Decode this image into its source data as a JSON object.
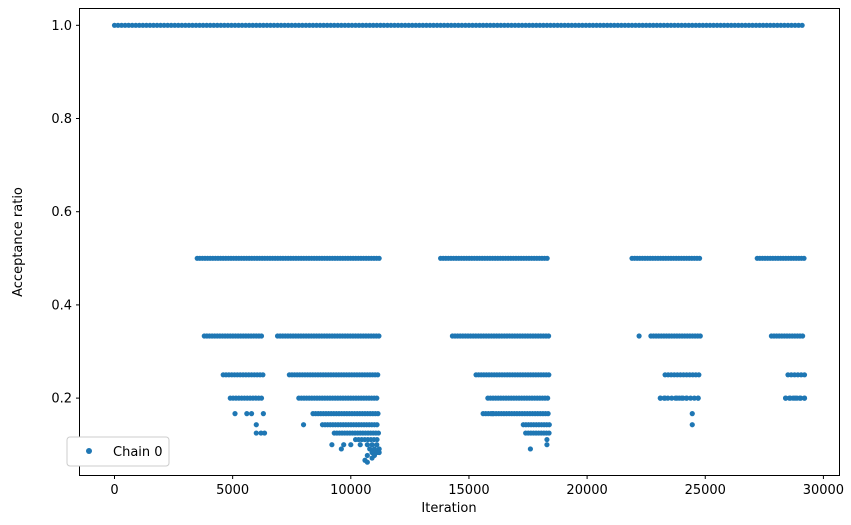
{
  "chart_data": {
    "type": "scatter",
    "title": "",
    "xlabel": "Iteration",
    "ylabel": "Acceptance ratio",
    "xlim": [
      -1460,
      30660
    ],
    "ylim": [
      0.035,
      1.035
    ],
    "xticks": [
      0,
      5000,
      10000,
      15000,
      20000,
      25000,
      30000
    ],
    "yticks": [
      0.2,
      0.4,
      0.6,
      0.8,
      1.0
    ],
    "xtick_labels": [
      "0",
      "5000",
      "10000",
      "15000",
      "20000",
      "25000",
      "30000"
    ],
    "ytick_labels": [
      "0.2",
      "0.4",
      "0.6",
      "0.8",
      "1.0"
    ],
    "grid": false,
    "legend_position": "lower-left",
    "series": [
      {
        "name": "Chain 0",
        "color": "#1f77b4",
        "marker": "dot",
        "segments": [
          {
            "y": 1.0,
            "x_start": 0,
            "x_end": 29200,
            "step": 150
          },
          {
            "y": 0.5,
            "x_start": 3500,
            "x_end": 11200,
            "step": 110
          },
          {
            "y": 0.5,
            "x_start": 13800,
            "x_end": 18400,
            "step": 110
          },
          {
            "y": 0.5,
            "x_start": 21900,
            "x_end": 24800,
            "step": 110
          },
          {
            "y": 0.5,
            "x_start": 27200,
            "x_end": 29200,
            "step": 110
          },
          {
            "y": 0.3333,
            "x_start": 3800,
            "x_end": 6300,
            "step": 110
          },
          {
            "y": 0.3333,
            "x_start": 6900,
            "x_end": 11200,
            "step": 110
          },
          {
            "y": 0.3333,
            "x_start": 14300,
            "x_end": 18400,
            "step": 110
          },
          {
            "y": 0.3333,
            "x_start": 22700,
            "x_end": 24800,
            "step": 110
          },
          {
            "y": 0.3333,
            "x_start": 27800,
            "x_end": 29200,
            "step": 110
          },
          {
            "y": 0.25,
            "x_start": 4600,
            "x_end": 6300,
            "step": 120
          },
          {
            "y": 0.25,
            "x_start": 7400,
            "x_end": 11200,
            "step": 110
          },
          {
            "y": 0.25,
            "x_start": 15300,
            "x_end": 18400,
            "step": 110
          },
          {
            "y": 0.25,
            "x_start": 23300,
            "x_end": 24800,
            "step": 130
          },
          {
            "y": 0.25,
            "x_start": 28500,
            "x_end": 29200,
            "step": 140
          },
          {
            "y": 0.2,
            "x_start": 4900,
            "x_end": 6300,
            "step": 120
          },
          {
            "y": 0.2,
            "x_start": 7800,
            "x_end": 11200,
            "step": 110
          },
          {
            "y": 0.2,
            "x_start": 15800,
            "x_end": 18400,
            "step": 110
          },
          {
            "y": 0.2,
            "x_start": 23100,
            "x_end": 24800,
            "step": 160
          },
          {
            "y": 0.2,
            "x_start": 28400,
            "x_end": 29200,
            "step": 160
          },
          {
            "y": 0.1667,
            "x_start": 8400,
            "x_end": 11200,
            "step": 110
          },
          {
            "y": 0.1667,
            "x_start": 15600,
            "x_end": 18400,
            "step": 110
          },
          {
            "y": 0.1429,
            "x_start": 8800,
            "x_end": 11200,
            "step": 110
          },
          {
            "y": 0.1429,
            "x_start": 17300,
            "x_end": 18400,
            "step": 110
          },
          {
            "y": 0.125,
            "x_start": 9300,
            "x_end": 11200,
            "step": 110
          },
          {
            "y": 0.125,
            "x_start": 17400,
            "x_end": 18400,
            "step": 110
          },
          {
            "y": 0.1111,
            "x_start": 10200,
            "x_end": 11200,
            "step": 130
          }
        ],
        "points": [
          [
            5100,
            0.1667
          ],
          [
            5600,
            0.1667
          ],
          [
            5800,
            0.1667
          ],
          [
            6300,
            0.1667
          ],
          [
            6000,
            0.1429
          ],
          [
            6000,
            0.125
          ],
          [
            6200,
            0.125
          ],
          [
            6350,
            0.125
          ],
          [
            8000,
            0.1429
          ],
          [
            9200,
            0.1
          ],
          [
            9700,
            0.1
          ],
          [
            10000,
            0.1
          ],
          [
            10400,
            0.1
          ],
          [
            10700,
            0.1
          ],
          [
            10900,
            0.1
          ],
          [
            11100,
            0.1
          ],
          [
            9600,
            0.0909
          ],
          [
            10800,
            0.0909
          ],
          [
            11000,
            0.0909
          ],
          [
            11200,
            0.0909
          ],
          [
            10900,
            0.0833
          ],
          [
            11100,
            0.0833
          ],
          [
            11200,
            0.0833
          ],
          [
            10700,
            0.0769
          ],
          [
            11000,
            0.0769
          ],
          [
            10900,
            0.0714
          ],
          [
            10600,
            0.0667
          ],
          [
            10700,
            0.0625
          ],
          [
            16000,
            0.1667
          ],
          [
            17600,
            0.0909
          ],
          [
            18300,
            0.1
          ],
          [
            18300,
            0.1111
          ],
          [
            22200,
            0.3333
          ],
          [
            23100,
            0.2
          ],
          [
            23300,
            0.2
          ],
          [
            23800,
            0.2
          ],
          [
            24000,
            0.2
          ],
          [
            24200,
            0.2
          ],
          [
            24700,
            0.2
          ],
          [
            24450,
            0.1667
          ],
          [
            24450,
            0.1429
          ],
          [
            28400,
            0.2
          ],
          [
            28600,
            0.2
          ],
          [
            28800,
            0.2
          ],
          [
            29000,
            0.2
          ],
          [
            29200,
            0.2
          ]
        ]
      }
    ]
  }
}
